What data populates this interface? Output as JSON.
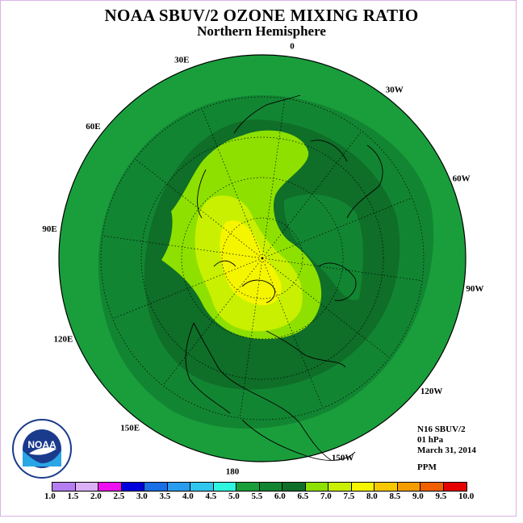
{
  "header": {
    "title": "NOAA SBUV/2 OZONE MIXING RATIO",
    "subtitle": "Northern Hemisphere"
  },
  "longitude_labels": [
    {
      "text": "90E",
      "angle_deg": 90
    },
    {
      "text": "60E",
      "angle_deg": 60
    },
    {
      "text": "30E",
      "angle_deg": 30
    },
    {
      "text": "0",
      "angle_deg": 0
    },
    {
      "text": "30W",
      "angle_deg": -30
    },
    {
      "text": "60W",
      "angle_deg": -60
    },
    {
      "text": "90W",
      "angle_deg": -90
    },
    {
      "text": "120W",
      "angle_deg": -120
    },
    {
      "text": "150W",
      "angle_deg": -150
    },
    {
      "text": "180",
      "angle_deg": 180
    },
    {
      "text": "150E",
      "angle_deg": 150
    },
    {
      "text": "120E",
      "angle_deg": 120
    }
  ],
  "info": {
    "instrument": "N16 SBUV/2",
    "pressure": "01 hPa",
    "date": "March 31, 2014",
    "units": "PPM"
  },
  "colorbar": {
    "labels": [
      "1.0",
      "1.5",
      "2.0",
      "2.5",
      "3.0",
      "3.5",
      "4.0",
      "4.5",
      "5.0",
      "5.5",
      "6.0",
      "6.5",
      "7.0",
      "7.5",
      "8.0",
      "8.5",
      "9.0",
      "9.5",
      "10.0"
    ],
    "colors": [
      "#b57ef0",
      "#dcb0f4",
      "#ee10ee",
      "#0000dd",
      "#1a6ee6",
      "#2a9cf0",
      "#30c6ee",
      "#2ff5e0",
      "#1a9e3c",
      "#128532",
      "#0f6e28",
      "#8ee000",
      "#c8f000",
      "#f5f500",
      "#f5c800",
      "#f59c00",
      "#f06000",
      "#e60000",
      "#8c5a32"
    ]
  },
  "logo": {
    "text": "NOAA"
  }
}
